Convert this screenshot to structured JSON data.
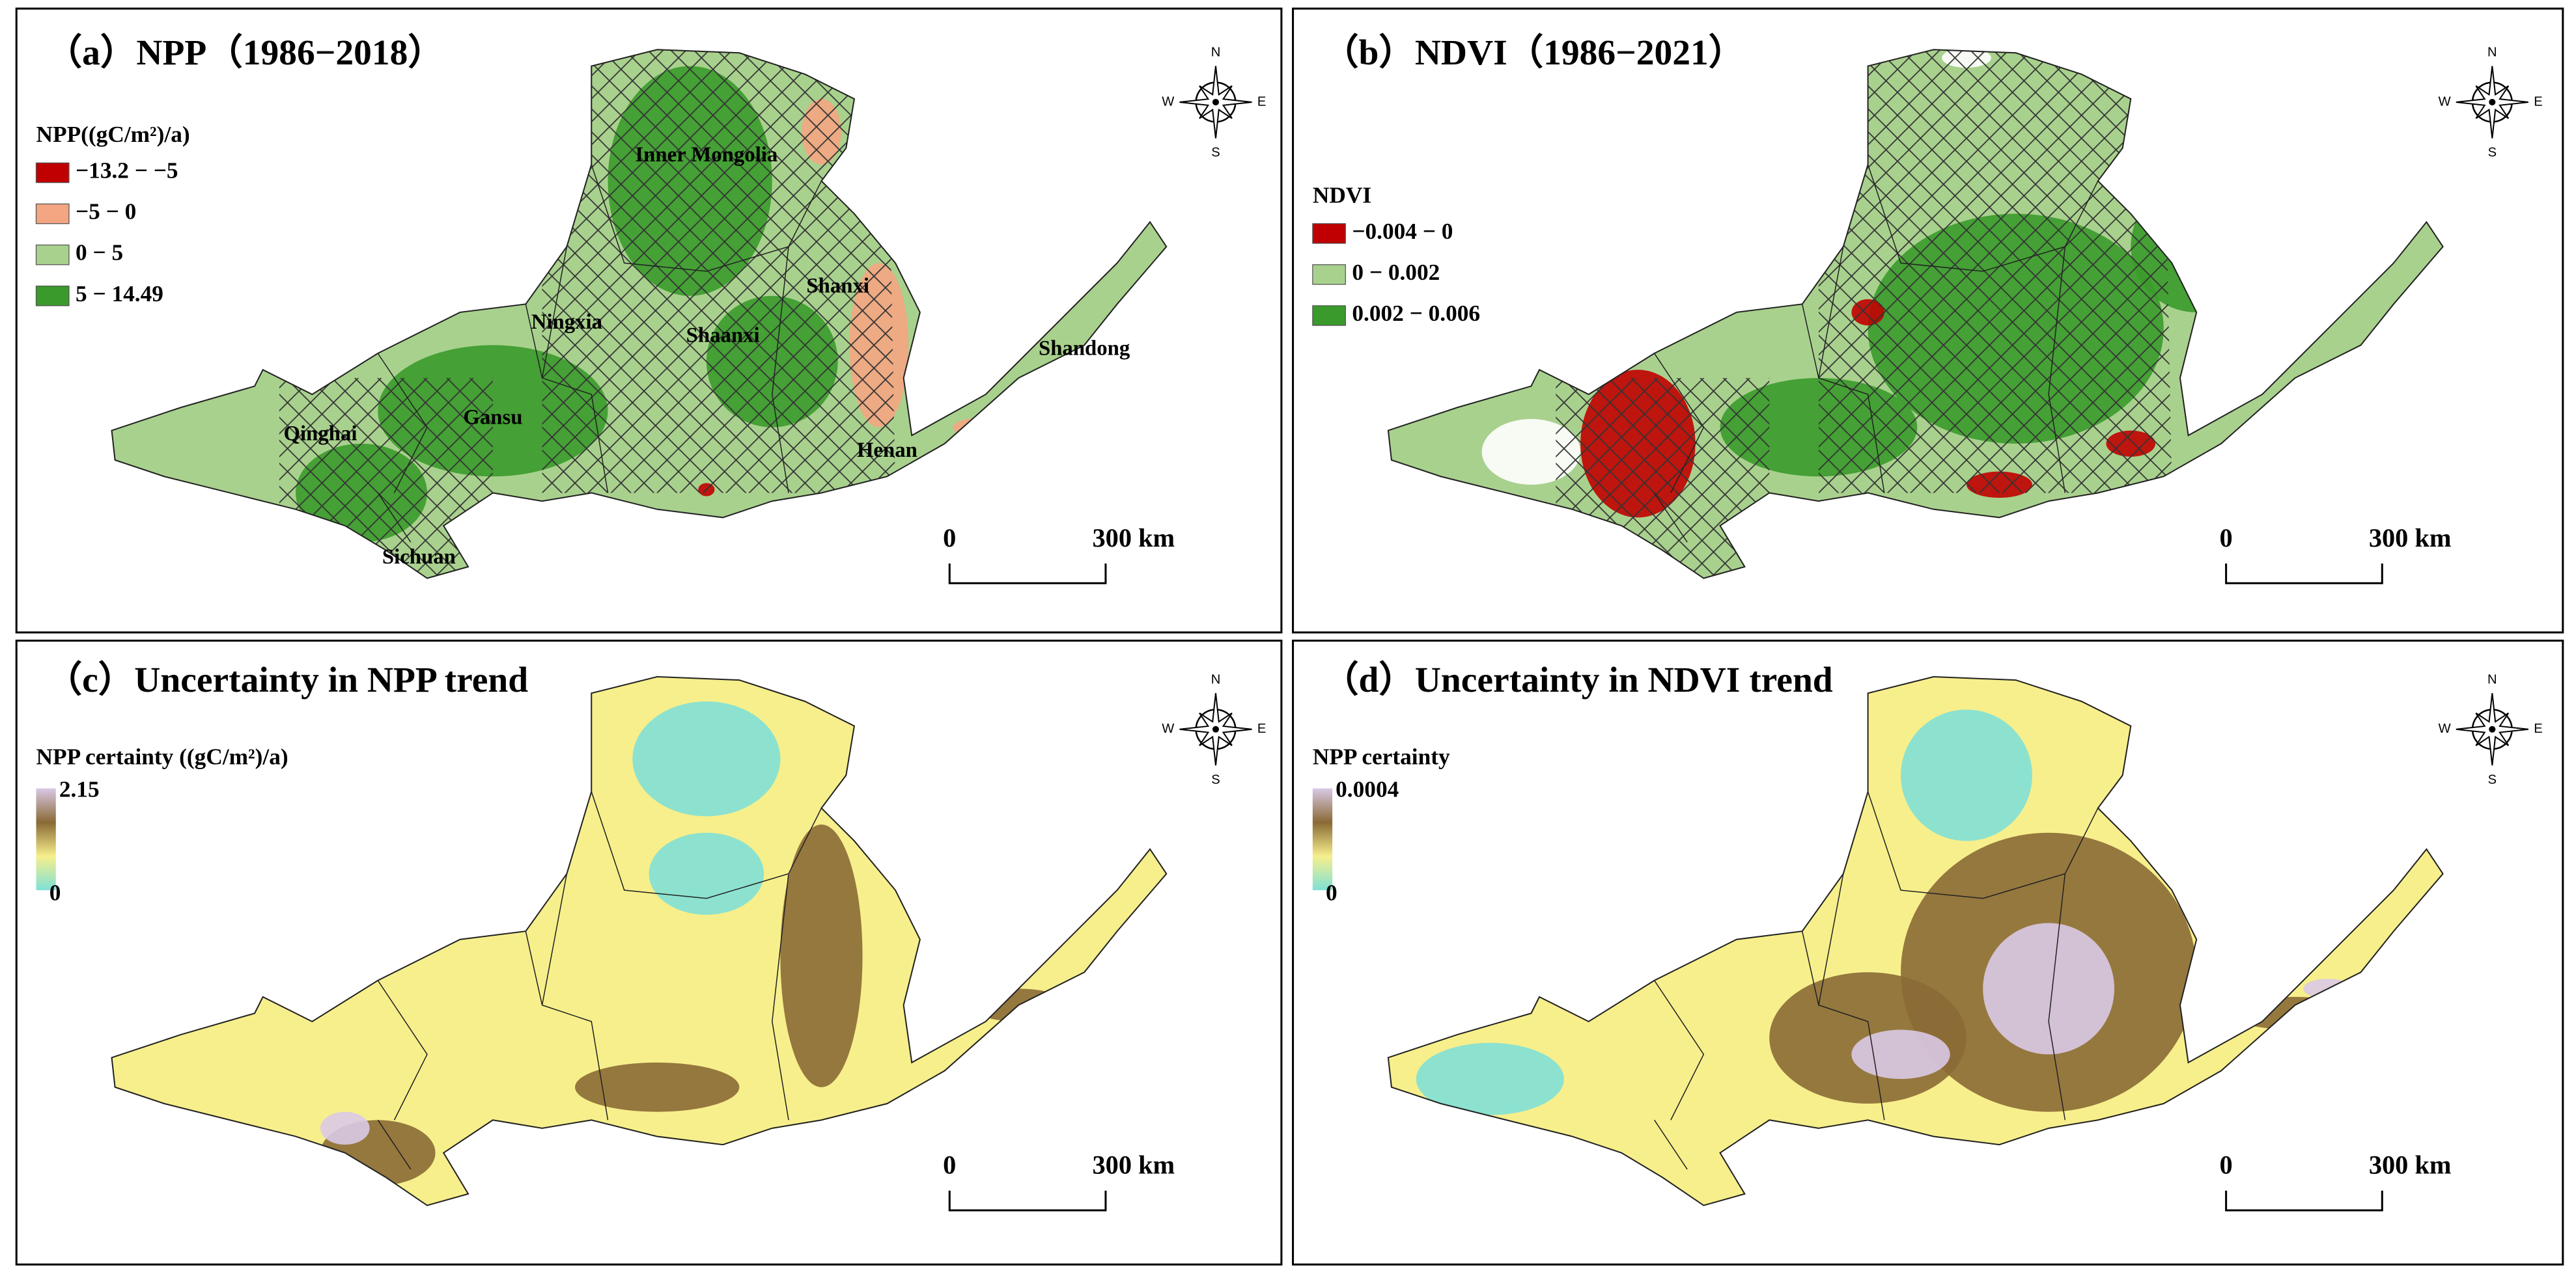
{
  "panels": [
    {
      "title": "（a）NPP（1986−2018）",
      "legend_title": "NPP((gC/m²)/a)",
      "legend": [
        {
          "label": "−13.2 − −5",
          "color": "#c00000"
        },
        {
          "label": "−5 − 0",
          "color": "#f4a582"
        },
        {
          "label": "0 − 5",
          "color": "#a9d18e"
        },
        {
          "label": "5 − 14.49",
          "color": "#3a9a2b"
        }
      ],
      "places": [
        "Inner Mongolia",
        "Ningxia",
        "Shaanxi",
        "Shanxi",
        "Gansu",
        "Qinghai",
        "Sichuan",
        "Henan",
        "Shandong"
      ]
    },
    {
      "title": "（b）NDVI（1986−2021）",
      "legend_title": "NDVI",
      "legend": [
        {
          "label": "−0.004 − 0",
          "color": "#c00000"
        },
        {
          "label": "0 − 0.002",
          "color": "#a9d18e"
        },
        {
          "label": "0.002 − 0.006",
          "color": "#3a9a2b"
        }
      ]
    },
    {
      "title": "（c）Uncertainty in NPP trend",
      "legend_title": "NPP certainty ((gC/m²)/a)",
      "colorbar": {
        "max": "2.15",
        "min": "0",
        "colors": [
          "#7fe0d6",
          "#f7ef8c",
          "#8a6a35",
          "#d9c9e6"
        ]
      }
    },
    {
      "title": "（d）Uncertainty in NDVI trend",
      "legend_title": "NPP certainty",
      "colorbar": {
        "max": "0.0004",
        "min": "0",
        "colors": [
          "#7fe0d6",
          "#f7ef8c",
          "#8a6a35",
          "#d9c9e6"
        ]
      }
    }
  ],
  "compass": [
    "N",
    "S",
    "W",
    "E"
  ],
  "scale_bar": [
    "0",
    "300 km"
  ]
}
